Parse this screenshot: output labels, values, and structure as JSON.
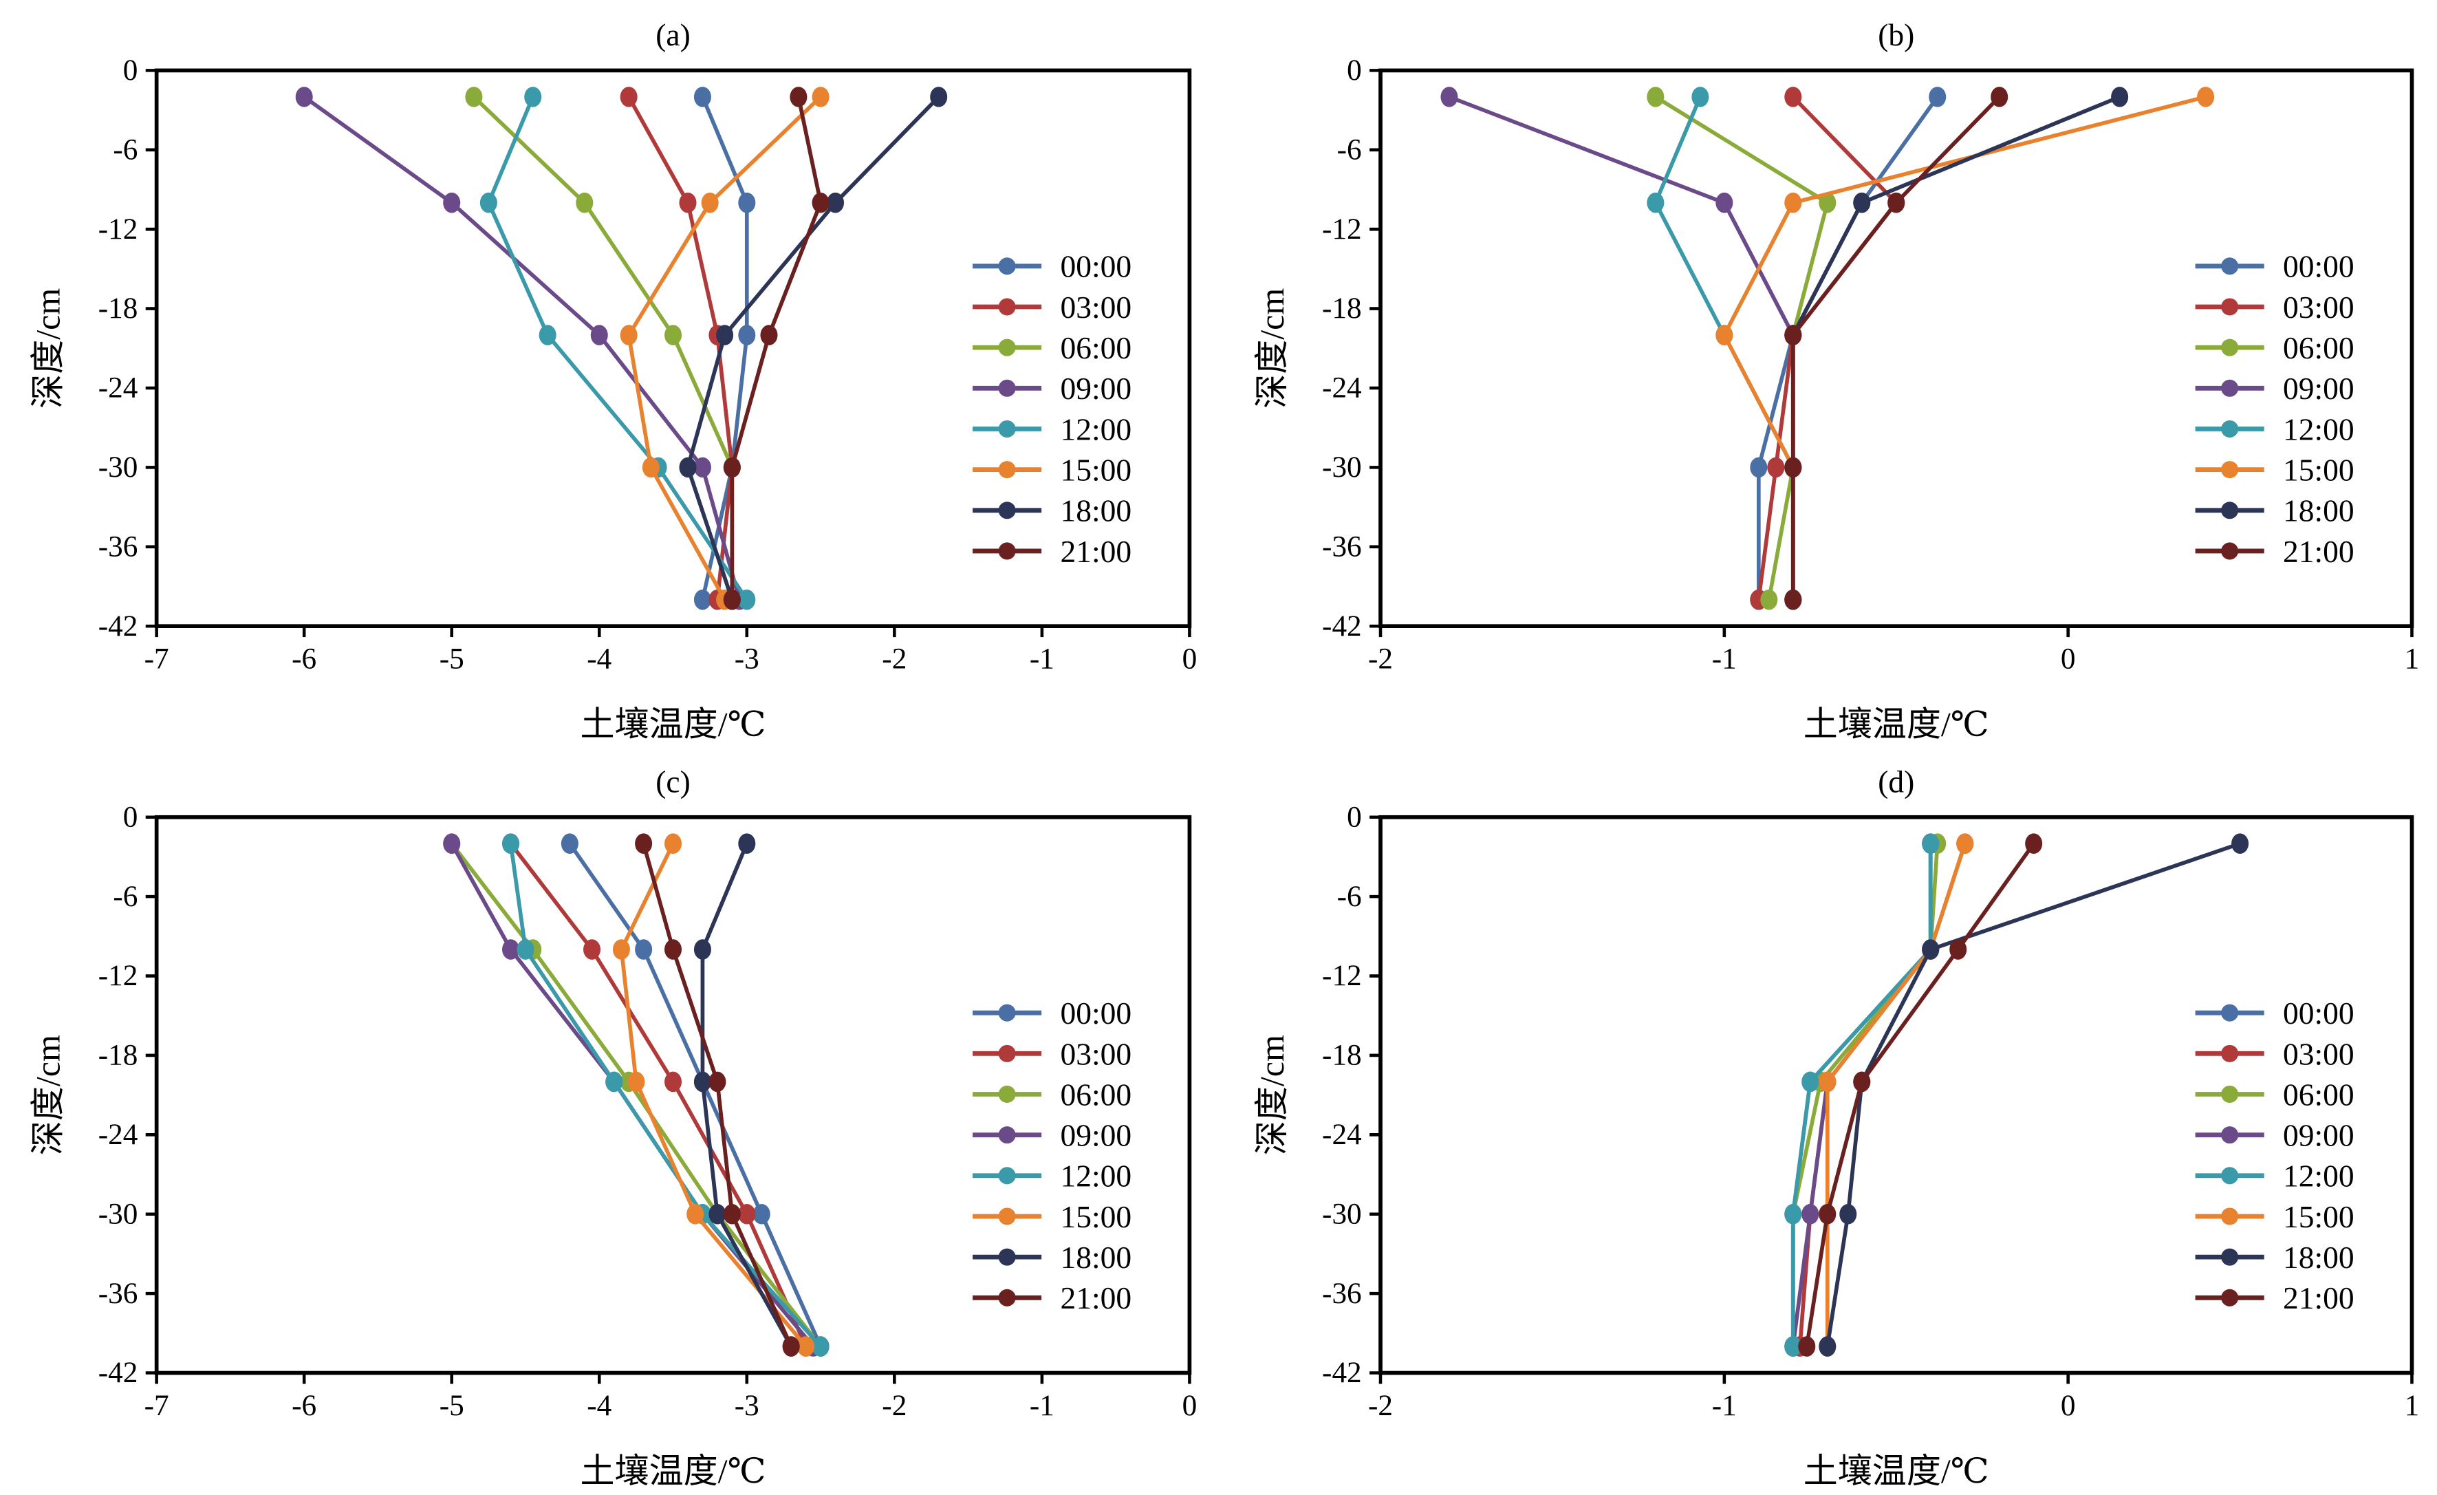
{
  "series_names": [
    "00:00",
    "03:00",
    "06:00",
    "09:00",
    "12:00",
    "15:00",
    "18:00",
    "21:00"
  ],
  "series_colors": [
    "#4a6fa5",
    "#b03a3a",
    "#8aab3a",
    "#6b4a8a",
    "#3a9aaa",
    "#e8822e",
    "#2c3555",
    "#6b2020"
  ],
  "chart_data": [
    {
      "type": "line",
      "title": "(a)",
      "xlabel": "土壤温度/℃",
      "ylabel": "深度/cm",
      "xlim": [
        -7,
        0
      ],
      "ylim": [
        -42,
        0
      ],
      "xticks": [
        "-7",
        "-6",
        "-5",
        "-4",
        "-3",
        "-2",
        "-1",
        "0"
      ],
      "yticks": [
        "0",
        "-6",
        "-12",
        "-18",
        "-24",
        "-30",
        "-36",
        "-42"
      ],
      "depth": [
        -2,
        -10,
        -20,
        -30,
        -40
      ],
      "legend": "right",
      "series": [
        {
          "name": "00:00",
          "values": [
            -3.3,
            -3.0,
            -3.0,
            -3.1,
            -3.3
          ]
        },
        {
          "name": "03:00",
          "values": [
            -3.8,
            -3.4,
            -3.2,
            -3.1,
            -3.2
          ]
        },
        {
          "name": "06:00",
          "values": [
            -4.85,
            -4.1,
            -3.5,
            -3.1,
            -3.1
          ]
        },
        {
          "name": "09:00",
          "values": [
            -6.0,
            -5.0,
            -4.0,
            -3.3,
            -3.05
          ]
        },
        {
          "name": "12:00",
          "values": [
            -4.45,
            -4.75,
            -4.35,
            -3.6,
            -3.0
          ]
        },
        {
          "name": "15:00",
          "values": [
            -2.5,
            -3.25,
            -3.8,
            -3.65,
            -3.15
          ]
        },
        {
          "name": "18:00",
          "values": [
            -1.7,
            -2.4,
            -3.15,
            -3.4,
            -3.1
          ]
        },
        {
          "name": "21:00",
          "values": [
            -2.65,
            -2.5,
            -2.85,
            -3.1,
            -3.1
          ]
        }
      ]
    },
    {
      "type": "line",
      "title": "(b)",
      "xlabel": "土壤温度/℃",
      "ylabel": "深度/cm",
      "xlim": [
        -2,
        1
      ],
      "ylim": [
        -42,
        0
      ],
      "xticks": [
        "-2",
        "-1",
        "0",
        "1"
      ],
      "yticks": [
        "0",
        "-6",
        "-12",
        "-18",
        "-24",
        "-30",
        "-36",
        "-42"
      ],
      "depth": [
        -2,
        -10,
        -20,
        -30,
        -40
      ],
      "legend": "right",
      "series": [
        {
          "name": "00:00",
          "values": [
            -0.38,
            -0.6,
            -0.8,
            -0.9,
            -0.9
          ]
        },
        {
          "name": "03:00",
          "values": [
            -0.8,
            -0.5,
            -0.8,
            -0.85,
            -0.9
          ]
        },
        {
          "name": "06:00",
          "values": [
            -1.2,
            -0.7,
            -0.8,
            -0.8,
            -0.87
          ]
        },
        {
          "name": "09:00",
          "values": [
            -1.8,
            -1.0,
            -0.8,
            -0.8,
            -0.8
          ]
        },
        {
          "name": "12:00",
          "values": [
            -1.07,
            -1.2,
            -1.0,
            -0.8,
            -0.8
          ]
        },
        {
          "name": "15:00",
          "values": [
            0.4,
            -0.8,
            -1.0,
            -0.8,
            -0.8
          ]
        },
        {
          "name": "18:00",
          "values": [
            0.15,
            -0.6,
            -0.8,
            -0.8,
            -0.8
          ]
        },
        {
          "name": "21:00",
          "values": [
            -0.2,
            -0.5,
            -0.8,
            -0.8,
            -0.8
          ]
        }
      ]
    },
    {
      "type": "line",
      "title": "(c)",
      "xlabel": "土壤温度/℃",
      "ylabel": "深度/cm",
      "xlim": [
        -7,
        0
      ],
      "ylim": [
        -42,
        0
      ],
      "xticks": [
        "-7",
        "-6",
        "-5",
        "-4",
        "-3",
        "-2",
        "-1",
        "0"
      ],
      "yticks": [
        "0",
        "-6",
        "-12",
        "-18",
        "-24",
        "-30",
        "-36",
        "-42"
      ],
      "depth": [
        -2,
        -10,
        -20,
        -30,
        -40
      ],
      "legend": "right",
      "series": [
        {
          "name": "00:00",
          "values": [
            -4.2,
            -3.7,
            -3.3,
            -2.9,
            -2.5
          ]
        },
        {
          "name": "03:00",
          "values": [
            -4.6,
            -4.05,
            -3.5,
            -3.0,
            -2.6
          ]
        },
        {
          "name": "06:00",
          "values": [
            -5.0,
            -4.45,
            -3.8,
            -3.2,
            -2.5
          ]
        },
        {
          "name": "09:00",
          "values": [
            -5.0,
            -4.6,
            -3.9,
            -3.3,
            -2.55
          ]
        },
        {
          "name": "12:00",
          "values": [
            -4.6,
            -4.5,
            -3.9,
            -3.3,
            -2.5
          ]
        },
        {
          "name": "15:00",
          "values": [
            -3.5,
            -3.85,
            -3.75,
            -3.35,
            -2.6
          ]
        },
        {
          "name": "18:00",
          "values": [
            -3.0,
            -3.3,
            -3.3,
            -3.2,
            -2.7
          ]
        },
        {
          "name": "21:00",
          "values": [
            -3.7,
            -3.5,
            -3.2,
            -3.1,
            -2.7
          ]
        }
      ]
    },
    {
      "type": "line",
      "title": "(d)",
      "xlabel": "土壤温度/℃",
      "ylabel": "深度/cm",
      "xlim": [
        -2,
        1
      ],
      "ylim": [
        -42,
        0
      ],
      "xticks": [
        "-2",
        "-1",
        "0",
        "1"
      ],
      "yticks": [
        "0",
        "-6",
        "-12",
        "-18",
        "-24",
        "-30",
        "-36",
        "-42"
      ],
      "depth": [
        -2,
        -10,
        -20,
        -30,
        -40
      ],
      "legend": "right",
      "series": [
        {
          "name": "00:00",
          "values": [
            -0.4,
            -0.4,
            -0.75,
            -0.8,
            -0.8
          ]
        },
        {
          "name": "03:00",
          "values": [
            -0.3,
            -0.4,
            -0.7,
            -0.75,
            -0.78
          ]
        },
        {
          "name": "06:00",
          "values": [
            -0.38,
            -0.4,
            -0.72,
            -0.8,
            -0.8
          ]
        },
        {
          "name": "09:00",
          "values": [
            -0.4,
            -0.4,
            -0.7,
            -0.75,
            -0.8
          ]
        },
        {
          "name": "12:00",
          "values": [
            -0.4,
            -0.4,
            -0.75,
            -0.8,
            -0.8
          ]
        },
        {
          "name": "15:00",
          "values": [
            -0.3,
            -0.4,
            -0.7,
            -0.7,
            -0.7
          ]
        },
        {
          "name": "18:00",
          "values": [
            0.5,
            -0.4,
            -0.6,
            -0.64,
            -0.7
          ]
        },
        {
          "name": "21:00",
          "values": [
            -0.1,
            -0.32,
            -0.6,
            -0.7,
            -0.76
          ]
        }
      ]
    }
  ]
}
